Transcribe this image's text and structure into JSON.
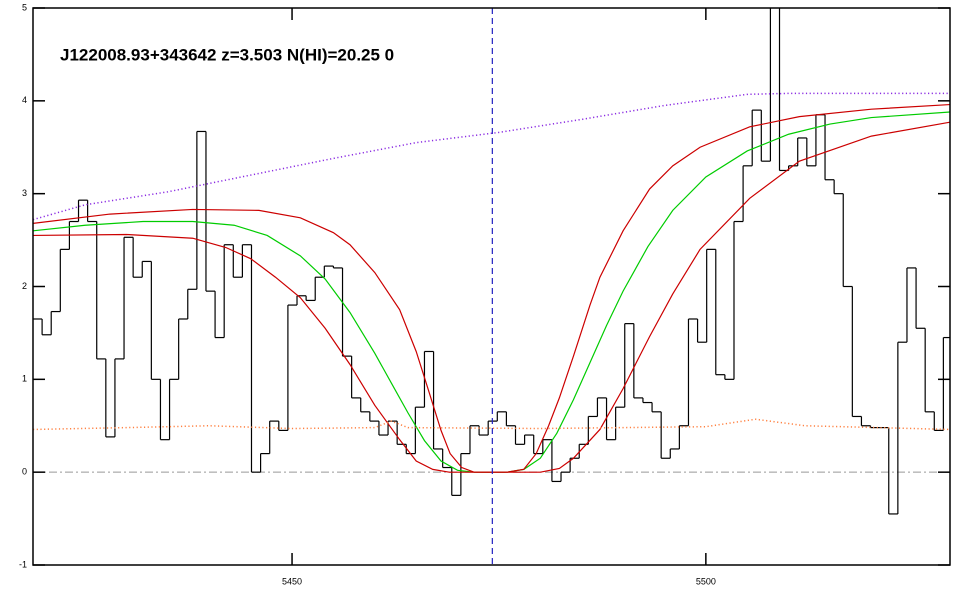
{
  "chart_data": {
    "type": "line",
    "title": "J122008.93+343642 z=3.503 N(HI)=20.25 0",
    "xlim": [
      5418.7,
      5529.5
    ],
    "ylim": [
      -1,
      5
    ],
    "xticks": [
      5450,
      5500
    ],
    "yticks": [
      -1,
      0,
      1,
      2,
      3,
      4,
      5
    ],
    "zero_line": 0,
    "marker_x": 5474.2,
    "series": [
      {
        "color": "#000000",
        "drawstyle": "steps",
        "dash": "solid",
        "x": [
          5419.25,
          5420.35,
          5421.45,
          5422.55,
          5423.65,
          5424.75,
          5425.85,
          5426.95,
          5428.05,
          5429.15,
          5430.25,
          5431.35,
          5432.45,
          5433.55,
          5434.65,
          5435.75,
          5436.85,
          5437.95,
          5439.05,
          5440.15,
          5441.25,
          5442.35,
          5443.45,
          5444.55,
          5445.65,
          5446.75,
          5447.85,
          5448.95,
          5450.05,
          5451.15,
          5452.25,
          5453.35,
          5454.45,
          5455.55,
          5456.65,
          5457.75,
          5458.85,
          5459.95,
          5461.05,
          5462.15,
          5463.25,
          5464.35,
          5465.45,
          5466.55,
          5467.65,
          5468.75,
          5469.85,
          5470.95,
          5472.05,
          5473.15,
          5474.25,
          5475.35,
          5476.45,
          5477.55,
          5478.65,
          5479.75,
          5480.85,
          5481.95,
          5483.05,
          5484.15,
          5485.25,
          5486.35,
          5487.45,
          5488.55,
          5489.65,
          5490.75,
          5491.85,
          5492.95,
          5494.05,
          5495.15,
          5496.25,
          5497.35,
          5498.45,
          5499.55,
          5500.65,
          5501.75,
          5502.85,
          5503.95,
          5505.05,
          5506.15,
          5507.25,
          5508.35,
          5509.45,
          5510.55,
          5511.65,
          5512.75,
          5513.85,
          5514.95,
          5516.05,
          5517.15,
          5518.25,
          5519.35,
          5520.45,
          5521.55,
          5522.65,
          5523.75,
          5524.85,
          5525.95,
          5527.05,
          5528.15,
          5529.25
        ],
        "values": [
          1.65,
          1.48,
          1.73,
          2.4,
          2.7,
          2.93,
          2.7,
          1.22,
          0.38,
          1.22,
          2.53,
          2.1,
          2.27,
          1.0,
          0.35,
          1.0,
          1.65,
          1.97,
          3.67,
          1.95,
          1.45,
          2.45,
          2.1,
          2.45,
          0.0,
          0.2,
          0.55,
          0.45,
          1.8,
          1.9,
          1.85,
          2.1,
          2.22,
          2.2,
          1.25,
          0.8,
          0.65,
          0.55,
          0.4,
          0.55,
          0.3,
          0.2,
          0.7,
          1.3,
          0.25,
          0.05,
          -0.25,
          0.2,
          0.5,
          0.4,
          0.55,
          0.65,
          0.5,
          0.3,
          0.4,
          0.2,
          0.35,
          -0.1,
          0.0,
          0.15,
          0.3,
          0.6,
          0.8,
          0.35,
          0.7,
          1.6,
          0.8,
          0.75,
          0.65,
          0.15,
          0.25,
          0.5,
          1.65,
          1.4,
          2.4,
          1.05,
          1.0,
          2.7,
          3.3,
          3.9,
          3.35,
          5.1,
          3.25,
          3.3,
          3.6,
          3.3,
          3.85,
          3.15,
          3.0,
          2.0,
          0.6,
          0.5,
          0.48,
          0.48,
          -0.45,
          1.4,
          2.2,
          1.55,
          0.65,
          0.45,
          1.45
        ]
      },
      {
        "color": "#00cc00",
        "drawstyle": "line",
        "dash": "solid",
        "x": [
          5418.7,
          5425,
          5432,
          5438,
          5443,
          5447,
          5451,
          5454,
          5457,
          5460,
          5462,
          5464,
          5466,
          5468,
          5470,
          5472,
          5476,
          5478,
          5480,
          5482,
          5484,
          5486,
          5488,
          5490,
          5493,
          5496,
          5500,
          5505,
          5510,
          5515,
          5520,
          5529.5
        ],
        "values": [
          2.6,
          2.66,
          2.7,
          2.7,
          2.66,
          2.55,
          2.33,
          2.08,
          1.72,
          1.28,
          0.96,
          0.64,
          0.34,
          0.12,
          0.02,
          0.0,
          0.0,
          0.03,
          0.15,
          0.42,
          0.78,
          1.18,
          1.58,
          1.95,
          2.43,
          2.82,
          3.18,
          3.46,
          3.64,
          3.75,
          3.82,
          3.88
        ]
      },
      {
        "color": "#cc0000",
        "drawstyle": "line",
        "dash": "solid",
        "x": [
          5418.7,
          5428,
          5438,
          5446,
          5451,
          5455,
          5457,
          5460,
          5463,
          5465,
          5466.6,
          5468,
          5469.1,
          5470.5,
          5472,
          5476,
          5478,
          5479.5,
          5481,
          5482.3,
          5484,
          5486,
          5487.2,
          5490,
          5493.2,
          5496,
          5499.3,
          5505.3,
          5511.3,
          5520,
          5529.5
        ],
        "values": [
          2.68,
          2.78,
          2.83,
          2.82,
          2.74,
          2.58,
          2.45,
          2.15,
          1.75,
          1.3,
          0.85,
          0.45,
          0.2,
          0.05,
          0.0,
          0.0,
          0.03,
          0.2,
          0.5,
          0.8,
          1.25,
          1.8,
          2.1,
          2.6,
          3.05,
          3.3,
          3.5,
          3.72,
          3.83,
          3.91,
          3.96
        ]
      },
      {
        "color": "#cc0000",
        "drawstyle": "line",
        "dash": "solid",
        "x": [
          5418.7,
          5430,
          5438,
          5442,
          5445,
          5448,
          5451,
          5454,
          5457,
          5460,
          5463,
          5465,
          5467,
          5469,
          5480,
          5482.3,
          5484,
          5487.2,
          5490,
          5493.2,
          5496,
          5499.3,
          5505.3,
          5511.3,
          5520,
          5529.5
        ],
        "values": [
          2.55,
          2.56,
          2.52,
          2.42,
          2.3,
          2.1,
          1.88,
          1.55,
          1.16,
          0.72,
          0.35,
          0.12,
          0.03,
          0.0,
          0.0,
          0.04,
          0.15,
          0.46,
          0.9,
          1.46,
          1.92,
          2.4,
          2.95,
          3.35,
          3.62,
          3.77
        ]
      },
      {
        "color": "#8a2be2",
        "drawstyle": "line",
        "dash": "dotted",
        "x": [
          5418.7,
          5425,
          5435,
          5445,
          5455,
          5465,
          5475,
          5485,
          5495,
          5505,
          5510,
          5529.5
        ],
        "values": [
          2.72,
          2.88,
          3.02,
          3.2,
          3.38,
          3.55,
          3.66,
          3.8,
          3.95,
          4.07,
          4.08,
          4.08
        ]
      },
      {
        "color": "#ff8040",
        "drawstyle": "line",
        "dash": "dotted",
        "x": [
          5418.7,
          5430,
          5440,
          5450,
          5460,
          5462,
          5464,
          5480,
          5500,
          5506,
          5512,
          5529.5
        ],
        "values": [
          0.46,
          0.48,
          0.5,
          0.47,
          0.48,
          0.55,
          0.48,
          0.47,
          0.49,
          0.57,
          0.5,
          0.46
        ]
      }
    ]
  }
}
